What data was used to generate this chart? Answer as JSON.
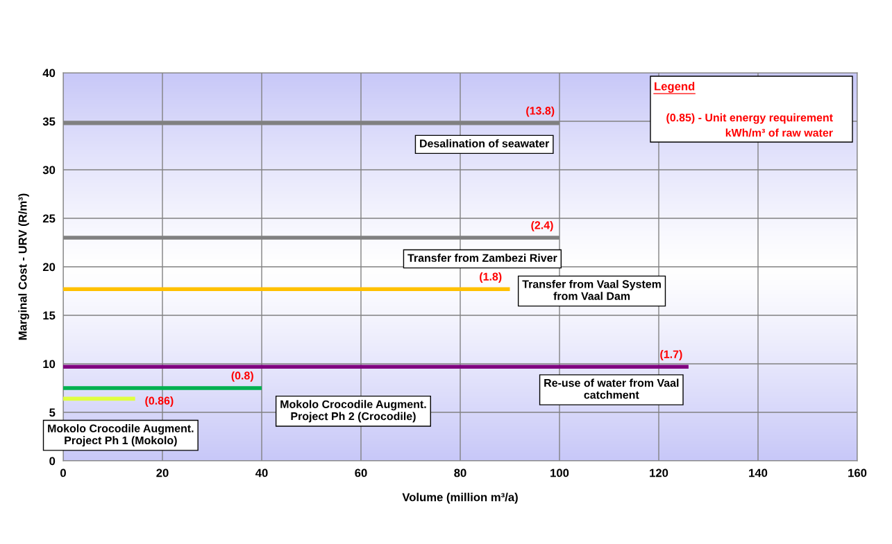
{
  "chart_data": {
    "type": "line",
    "xlabel": "Volume (million m³/a)",
    "ylabel": "Marginal Cost - URV (R/m³)",
    "xlim": [
      0,
      160
    ],
    "xticks": [
      0,
      20,
      40,
      60,
      80,
      100,
      120,
      140,
      160
    ],
    "ylim": [
      0,
      40
    ],
    "yticks": [
      0,
      5,
      10,
      15,
      20,
      25,
      30,
      35,
      40
    ],
    "grid": true,
    "marker": "none",
    "line_style": "solid",
    "series": [
      {
        "color": "#808080",
        "x": [
          0,
          100
        ],
        "values": [
          34.8,
          34.8
        ]
      },
      {
        "color": "#808080",
        "x": [
          0,
          100
        ],
        "values": [
          23.0,
          23.0
        ]
      },
      {
        "color": "#ffc000",
        "x": [
          0,
          90
        ],
        "values": [
          17.7,
          17.7
        ]
      },
      {
        "color": "#7f007f",
        "x": [
          0,
          126
        ],
        "values": [
          9.7,
          9.7
        ]
      },
      {
        "color": "#00b050",
        "x": [
          0,
          40
        ],
        "values": [
          7.5,
          7.5
        ]
      },
      {
        "color": "#e0ff40",
        "x": [
          0,
          14.5
        ],
        "values": [
          6.4,
          6.4
        ]
      }
    ],
    "annotations": [
      {
        "text": "Desalination of seawater",
        "x": 100,
        "y": 34.8
      },
      {
        "text": "Transfer from Zambezi River",
        "x": 100,
        "y": 23.0
      },
      {
        "text": "Transfer from Vaal System\nfrom Vaal Dam",
        "x": 90,
        "y": 17.7
      },
      {
        "text": "Re-use of water from Vaal\ncatchment",
        "x": 126,
        "y": 9.7
      },
      {
        "text": "Mokolo Crocodile Augment.\nProject Ph 2 (Crocodile)",
        "x": 40,
        "y": 7.5
      },
      {
        "text": "Mokolo Crocodile Augment.\nProject Ph 1 (Mokolo)",
        "x": 14.5,
        "y": 6.4
      },
      {
        "text": "(13.8)",
        "x": 100,
        "y": 34.8
      },
      {
        "text": "(2.4)",
        "x": 100,
        "y": 23.0
      },
      {
        "text": "(1.8)",
        "x": 90,
        "y": 17.7
      },
      {
        "text": "(1.7)",
        "x": 126,
        "y": 9.7
      },
      {
        "text": "(0.8)",
        "x": 40,
        "y": 7.5
      },
      {
        "text": "(0.86)",
        "x": 14.5,
        "y": 6.4
      },
      "Legend",
      "(0.85) - Unit energy requirement\nkWh/m³ of raw water"
    ]
  }
}
